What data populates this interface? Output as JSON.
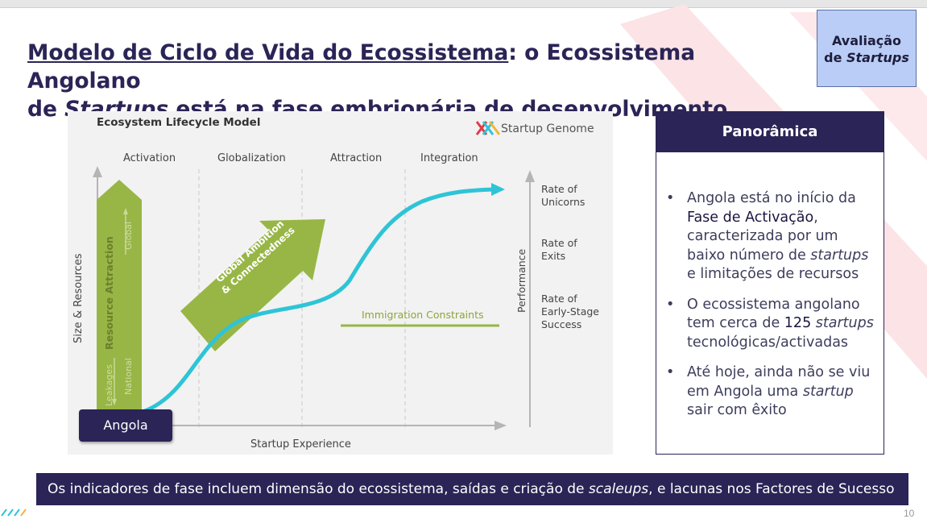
{
  "title": {
    "part1_underlined": "Modelo de Ciclo de Vida do Ecossistema",
    "part2": ": o Ecossistema Angolano",
    "part3": "de ",
    "part4_italic": "Startups",
    "part5": " está na fase embrionária de desenvolvimento"
  },
  "badge": {
    "line1": "Avaliação",
    "line2_prefix": "de ",
    "line2_italic": "Startups"
  },
  "diagram": {
    "title": "Ecosystem Lifecycle Model",
    "logo_text": "Startup Genome",
    "phases": [
      "Activation",
      "Globalization",
      "Attraction",
      "Integration"
    ],
    "y_axis_label": "Size & Resources",
    "x_axis_label": "Startup Experience",
    "right_axis_label": "Performance",
    "performance_levels": [
      [
        "Rate of",
        "Unicorns"
      ],
      [
        "Rate of",
        "Exits"
      ],
      [
        "Rate of",
        "Early-Stage",
        "Success"
      ]
    ],
    "resource_attraction": "Resource Attraction",
    "global_label": "Global",
    "national_label": "National",
    "leakages_label": "Leakages",
    "ambition_line1": "Global Ambition",
    "ambition_line2": "& Connectedness",
    "immigration": "Immigration Constraints",
    "angola": "Angola",
    "colors": {
      "green": "#98b646",
      "curve": "#2ec4d6",
      "navy": "#2b2456"
    }
  },
  "panel": {
    "heading": "Panorâmica",
    "bullet1": {
      "t1": "Angola está no início da ",
      "dark": "Fase de Activação",
      "t2": ", caracterizada por um baixo número de ",
      "italic": "startups",
      "t3": " e limitações de recursos"
    },
    "bullet2": {
      "t1": "O ecossistema angolano tem cerca de ",
      "dark": "125",
      "italic": " startups",
      "t3": " tecnológicas/activadas"
    },
    "bullet3": {
      "t1": "Até hoje, ainda não se viu em Angola uma ",
      "italic": "startup",
      "t3": " sair com êxito"
    }
  },
  "footer": {
    "t1": "Os indicadores de fase incluem dimensão do ecossistema, saídas e criação de ",
    "italic": "scaleups",
    "t2": ", e lacunas nos Factores de Sucesso"
  },
  "page_number": "10"
}
